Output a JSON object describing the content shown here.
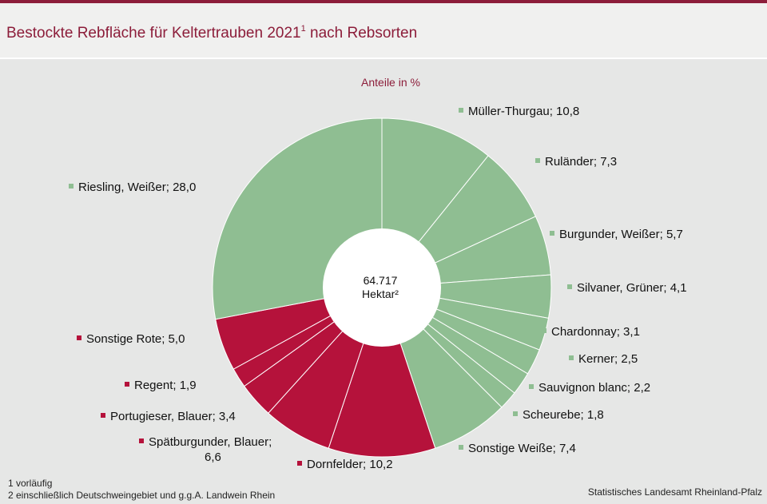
{
  "title": "Bestockte Rebfläche für Keltertrauben 2021",
  "title_sup": "1",
  "title_suffix": " nach Rebsorten",
  "colors": {
    "white_varieties": "#8fbe92",
    "red_varieties": "#b5123b",
    "accent": "#8c1d3a"
  },
  "footnotes": [
    "1 vorläufig",
    "2 einschließlich Deutschweingebiet  und g.g.A. Landwein Rhein"
  ],
  "source": "Statistisches Landesamt Rheinland-Pfalz",
  "chart_data": {
    "type": "pie",
    "variant": "donut",
    "subtitle": "Anteile in %",
    "center_label": [
      "64.717",
      "Hektar²"
    ],
    "slices": [
      {
        "label": "Müller-Thurgau;  10,8",
        "name": "Müller-Thurgau",
        "value": 10.8,
        "group": "white"
      },
      {
        "label": "Ruländer;  7,3",
        "name": "Ruländer",
        "value": 7.3,
        "group": "white"
      },
      {
        "label": "Burgunder,  Weißer; 5,7",
        "name": "Burgunder, Weißer",
        "value": 5.7,
        "group": "white"
      },
      {
        "label": "Silvaner,  Grüner;  4,1",
        "name": "Silvaner, Grüner",
        "value": 4.1,
        "group": "white"
      },
      {
        "label": "Chardonnay;  3,1",
        "name": "Chardonnay",
        "value": 3.1,
        "group": "white"
      },
      {
        "label": "Kerner;  2,5",
        "name": "Kerner",
        "value": 2.5,
        "group": "white"
      },
      {
        "label": "Sauvignon blanc; 2,2",
        "name": "Sauvignon blanc",
        "value": 2.2,
        "group": "white"
      },
      {
        "label": "Scheurebe;  1,8",
        "name": "Scheurebe",
        "value": 1.8,
        "group": "white"
      },
      {
        "label": "Sonstige Weiße; 7,4",
        "name": "Sonstige Weiße",
        "value": 7.4,
        "group": "white"
      },
      {
        "label": "Dornfelder;  10,2",
        "name": "Dornfelder",
        "value": 10.2,
        "group": "red"
      },
      {
        "label": "Spätburgunder,  Blauer;\n6,6",
        "name": "Spätburgunder, Blauer",
        "value": 6.6,
        "group": "red"
      },
      {
        "label": "Portugieser,  Blauer; 3,4",
        "name": "Portugieser, Blauer",
        "value": 3.4,
        "group": "red"
      },
      {
        "label": "Regent;  1,9",
        "name": "Regent",
        "value": 1.9,
        "group": "red"
      },
      {
        "label": "Sonstige Rote; 5,0",
        "name": "Sonstige Rote",
        "value": 5.0,
        "group": "red"
      },
      {
        "label": "Riesling, Weißer; 28,0",
        "name": "Riesling, Weißer",
        "value": 28.0,
        "group": "white"
      }
    ]
  }
}
